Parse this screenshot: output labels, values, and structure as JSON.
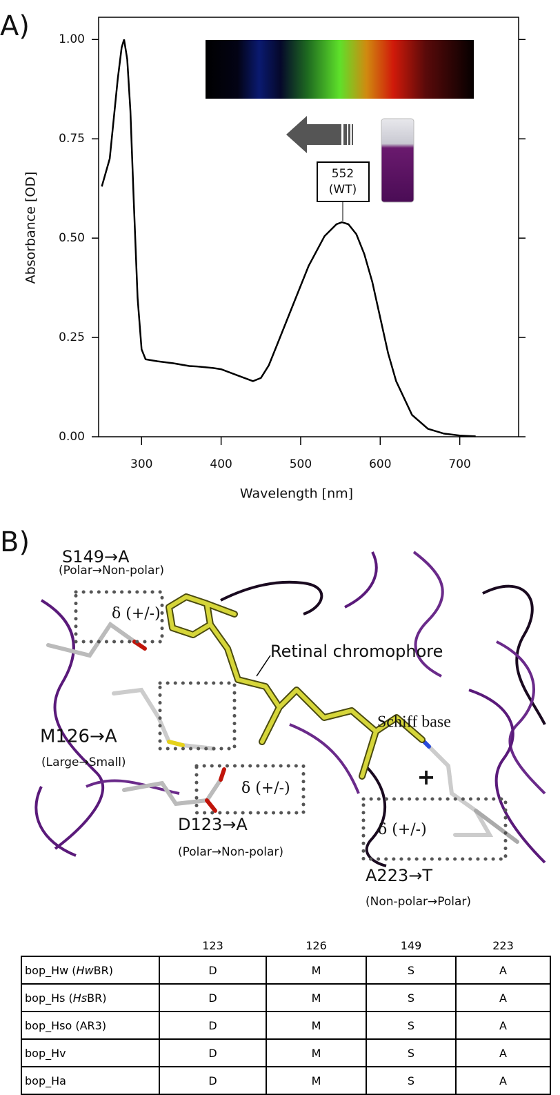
{
  "panel_a": "A)",
  "chart_data": {
    "type": "line",
    "x": [
      250,
      260,
      270,
      275,
      278,
      282,
      286,
      290,
      295,
      300,
      305,
      320,
      340,
      360,
      370,
      390,
      400,
      420,
      440,
      450,
      460,
      470,
      490,
      510,
      530,
      545,
      552,
      560,
      570,
      580,
      590,
      600,
      610,
      620,
      640,
      660,
      680,
      700,
      720
    ],
    "values": [
      0.63,
      0.7,
      0.9,
      0.98,
      1.0,
      0.95,
      0.82,
      0.6,
      0.35,
      0.22,
      0.195,
      0.19,
      0.185,
      0.178,
      0.177,
      0.173,
      0.17,
      0.155,
      0.14,
      0.148,
      0.18,
      0.23,
      0.33,
      0.43,
      0.505,
      0.535,
      0.54,
      0.535,
      0.51,
      0.46,
      0.39,
      0.3,
      0.21,
      0.14,
      0.055,
      0.02,
      0.008,
      0.003,
      0.001
    ],
    "color": "#000000",
    "xlim": [
      246,
      774
    ],
    "ylim": [
      0,
      1.056
    ],
    "xticks": [
      300,
      400,
      500,
      600,
      700
    ],
    "yticks": [
      {
        "value": 0,
        "label": "0.00"
      },
      {
        "value": 0.25,
        "label": "0.25"
      },
      {
        "value": 0.5,
        "label": "0.50"
      },
      {
        "value": 0.75,
        "label": "0.75"
      },
      {
        "value": 1,
        "label": "1.00"
      }
    ],
    "xlabel": "Wavelength [nm]",
    "ylabel": "Absorbance [OD]",
    "annotation": [
      "552",
      "(WT)"
    ]
  },
  "panel_b": "B)",
  "structure": {
    "s149": "S149→A",
    "s149_note": "(Polar→Non-polar)",
    "delta": [
      "δ (+/-)",
      "δ (+/-)",
      "δ (+/-)"
    ],
    "retinal": "Retinal chromophore",
    "schiff": "Schiff base",
    "charge": "+",
    "m126": "M126→A",
    "m126_note": "(Large→Small)",
    "d123": "D123→A",
    "d123_note": "(Polar→Non-polar)",
    "a223": "A223→T",
    "a223_note": "(Non-polar→Polar)"
  },
  "table": {
    "columns": [
      "123",
      "126",
      "149",
      "223"
    ],
    "rows": [
      {
        "name": [
          {
            "text": "bop_Hw ("
          },
          {
            "text": "Hw",
            "style": "italic"
          },
          {
            "text": "BR)"
          }
        ],
        "cells": [
          "D",
          "M",
          "S",
          "A"
        ]
      },
      {
        "name": [
          {
            "text": "bop_Hs ("
          },
          {
            "text": "Hs",
            "style": "italic"
          },
          {
            "text": "BR)"
          }
        ],
        "cells": [
          "D",
          "M",
          "S",
          "A"
        ]
      },
      {
        "name": [
          {
            "text": "bop_Hso (AR3)"
          }
        ],
        "cells": [
          "D",
          "M",
          "S",
          "A"
        ]
      },
      {
        "name": [
          {
            "text": "bop_Hv"
          }
        ],
        "cells": [
          "D",
          "M",
          "S",
          "A"
        ]
      },
      {
        "name": [
          {
            "text": "bop_Ha"
          }
        ],
        "cells": [
          "D",
          "M",
          "S",
          "A"
        ]
      }
    ]
  }
}
